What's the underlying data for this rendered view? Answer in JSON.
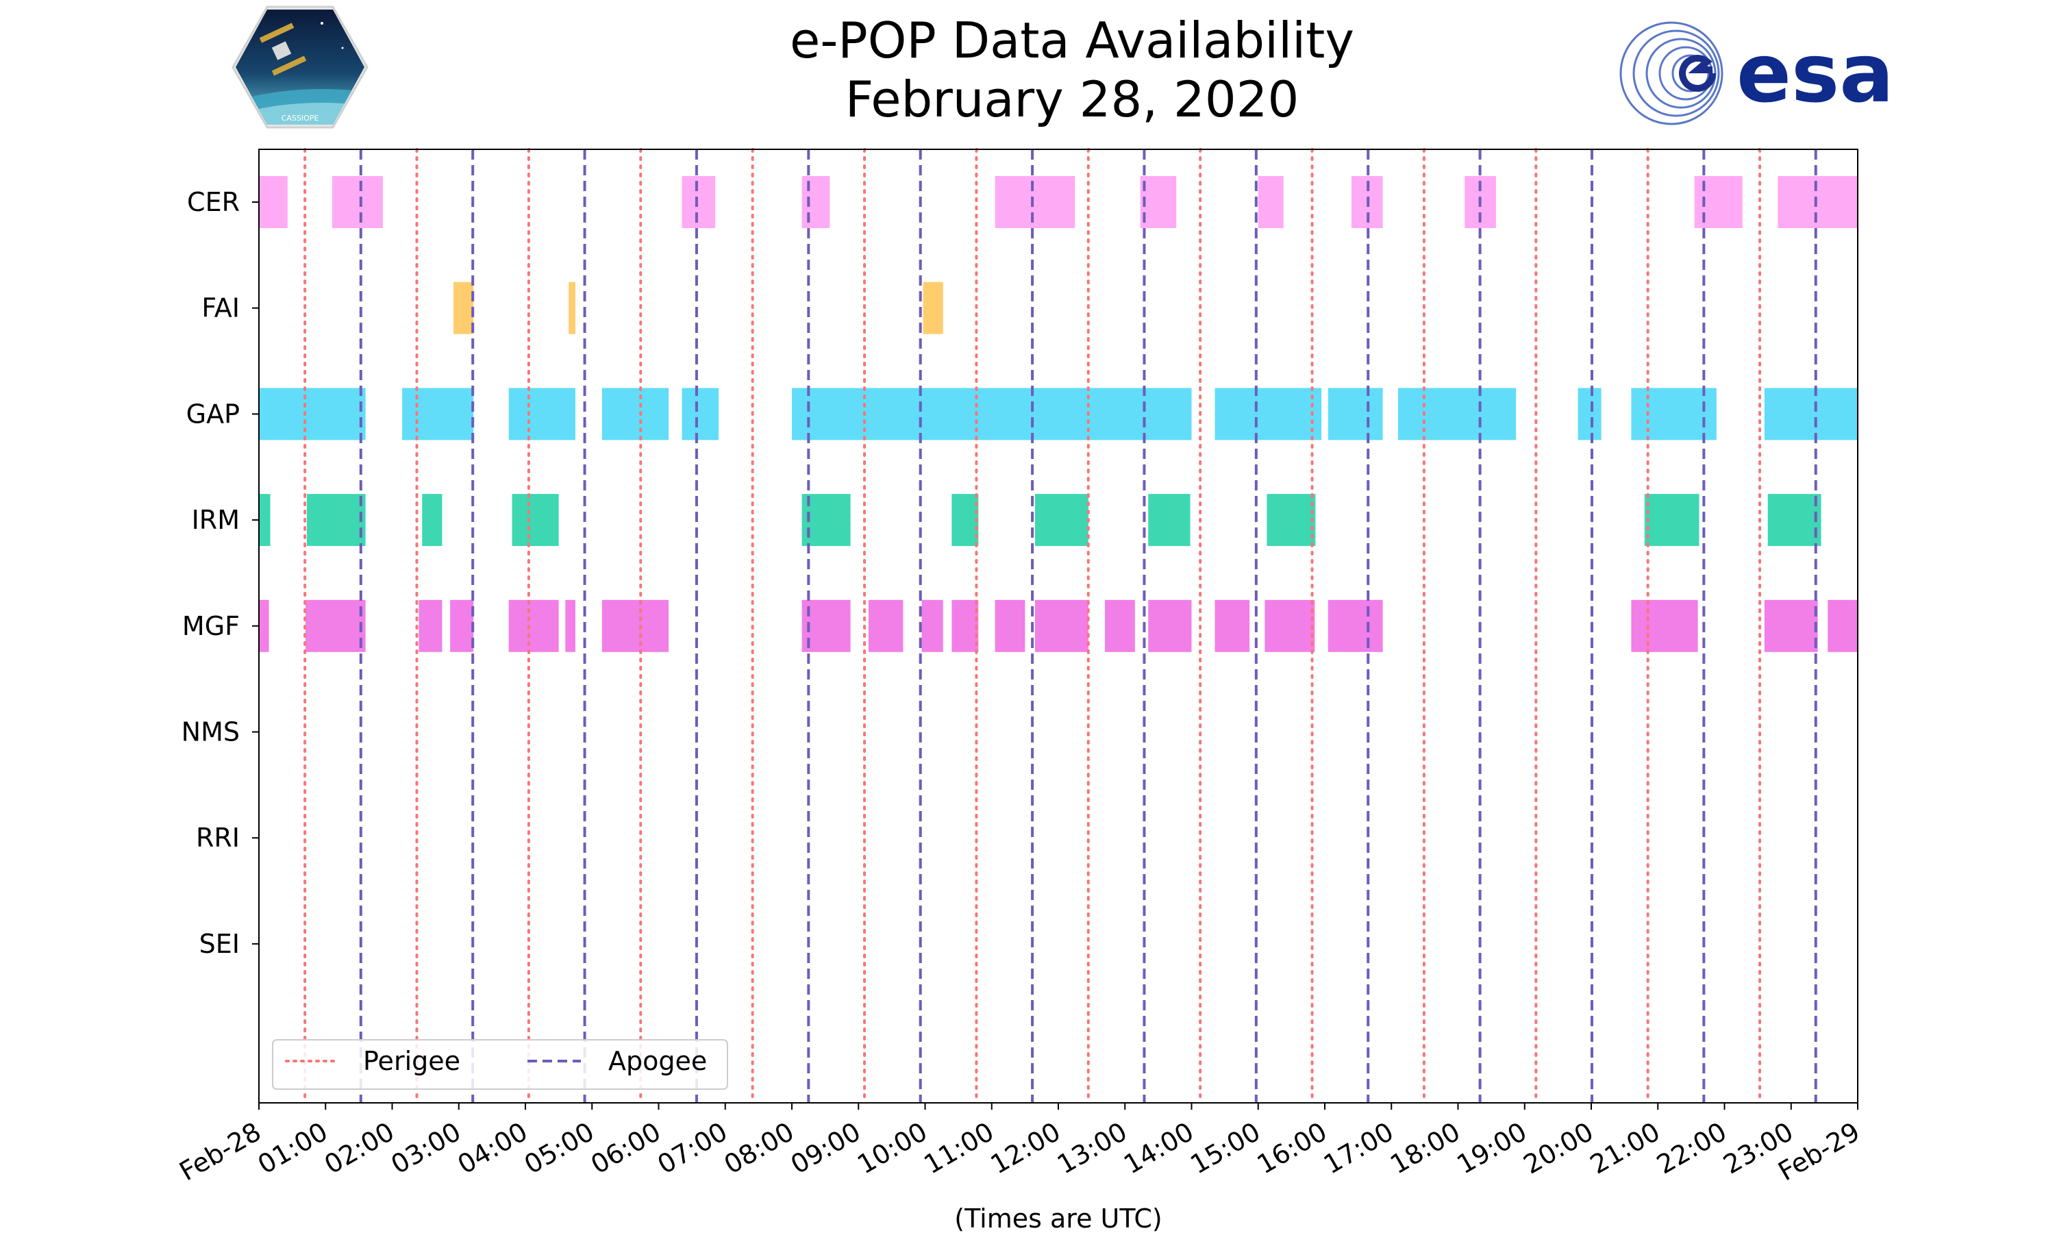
{
  "chart_data": {
    "type": "timeline",
    "title": "e-POP Data Availability",
    "subtitle": "February 28, 2020",
    "xlabel": "(Times are UTC)",
    "xlim_hours": [
      0,
      24
    ],
    "x_tick_labels": [
      "Feb-28",
      "01:00",
      "02:00",
      "03:00",
      "04:00",
      "05:00",
      "06:00",
      "07:00",
      "08:00",
      "09:00",
      "10:00",
      "11:00",
      "12:00",
      "13:00",
      "14:00",
      "15:00",
      "16:00",
      "17:00",
      "18:00",
      "19:00",
      "20:00",
      "21:00",
      "22:00",
      "23:00",
      "Feb-29"
    ],
    "instruments": [
      "CER",
      "FAI",
      "GAP",
      "IRM",
      "MGF",
      "NMS",
      "RRI",
      "SEI"
    ],
    "colors": {
      "CER": "#ffaaf5",
      "FAI": "#ffcd6e",
      "GAP": "#61ddfa",
      "IRM": "#3dd7b1",
      "MGF": "#f27ee8",
      "perigee": "#f77676",
      "apogee": "#6e5cba"
    },
    "intervals": {
      "CER": [
        [
          0,
          0.43
        ],
        [
          1.1,
          1.86
        ],
        [
          6.35,
          6.85
        ],
        [
          8.15,
          8.57
        ],
        [
          11.05,
          12.25
        ],
        [
          13.23,
          13.77
        ],
        [
          15.0,
          15.38
        ],
        [
          16.4,
          16.87
        ],
        [
          18.1,
          18.57
        ],
        [
          21.55,
          22.27
        ],
        [
          22.8,
          24.0
        ]
      ],
      "FAI": [
        [
          2.92,
          3.22
        ],
        [
          4.65,
          4.75
        ],
        [
          9.97,
          10.27
        ]
      ],
      "GAP": [
        [
          0,
          1.6
        ],
        [
          2.15,
          3.22
        ],
        [
          3.75,
          4.75
        ],
        [
          5.15,
          6.15
        ],
        [
          6.35,
          6.9
        ],
        [
          8.0,
          14.0
        ],
        [
          14.35,
          15.95
        ],
        [
          16.05,
          16.87
        ],
        [
          17.1,
          18.87
        ],
        [
          19.8,
          20.15
        ],
        [
          20.6,
          21.88
        ],
        [
          22.6,
          24.0
        ]
      ],
      "IRM": [
        [
          0,
          0.17
        ],
        [
          0.72,
          1.6
        ],
        [
          2.45,
          2.75
        ],
        [
          3.8,
          4.5
        ],
        [
          8.15,
          8.88
        ],
        [
          10.4,
          10.8
        ],
        [
          11.65,
          12.45
        ],
        [
          13.35,
          13.98
        ],
        [
          15.13,
          15.86
        ],
        [
          20.8,
          21.62
        ],
        [
          22.65,
          23.45
        ]
      ],
      "MGF": [
        [
          0,
          0.15
        ],
        [
          0.7,
          1.6
        ],
        [
          2.4,
          2.75
        ],
        [
          2.87,
          3.22
        ],
        [
          3.75,
          4.5
        ],
        [
          4.6,
          4.75
        ],
        [
          5.15,
          6.15
        ],
        [
          8.15,
          8.88
        ],
        [
          9.15,
          9.67
        ],
        [
          9.95,
          10.27
        ],
        [
          10.4,
          10.8
        ],
        [
          11.05,
          11.5
        ],
        [
          11.65,
          12.45
        ],
        [
          12.7,
          13.15
        ],
        [
          13.35,
          14.0
        ],
        [
          14.35,
          14.87
        ],
        [
          15.1,
          15.85
        ],
        [
          16.05,
          16.87
        ],
        [
          20.6,
          21.6
        ],
        [
          22.6,
          23.4
        ],
        [
          23.55,
          24.0
        ]
      ],
      "NMS": [],
      "RRI": [],
      "SEI": []
    },
    "perigee_hours": [
      0.69,
      2.37,
      4.05,
      5.73,
      7.41,
      9.09,
      10.77,
      12.45,
      14.13,
      15.81,
      17.49,
      19.17,
      20.85,
      22.53
    ],
    "apogee_hours": [
      1.53,
      3.21,
      4.89,
      6.57,
      8.25,
      9.93,
      11.61,
      13.29,
      14.97,
      16.65,
      18.33,
      20.01,
      21.69,
      23.37
    ],
    "legend": {
      "position": "lower-left",
      "entries": [
        "Perigee",
        "Apogee"
      ]
    }
  },
  "logos": {
    "left": "CASSIOPE mission badge",
    "left_text": "CASSIOPE",
    "right": "esa",
    "right_text": "esa"
  }
}
